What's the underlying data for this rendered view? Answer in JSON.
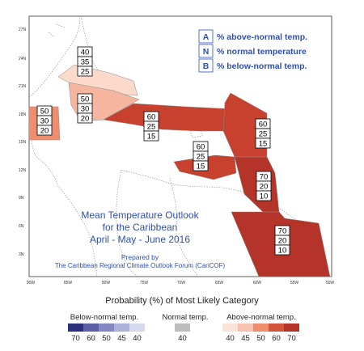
{
  "map": {
    "lat_labels": [
      "27N",
      "24N",
      "21N",
      "18N",
      "15N",
      "12N",
      "9N",
      "6N",
      "3N"
    ],
    "lon_labels": [
      "90W",
      "85W",
      "80W",
      "75W",
      "70W",
      "65W",
      "60W",
      "55W",
      "50W"
    ],
    "legend_box": [
      {
        "letter": "A",
        "text": "% above-normal temp."
      },
      {
        "letter": "N",
        "text": "% normal temperature"
      },
      {
        "letter": "B",
        "text": "% below-normal temp."
      }
    ],
    "regions": [
      {
        "name": "bahamas",
        "values": [
          "40",
          "35",
          "25"
        ],
        "color": "#fbd9cb"
      },
      {
        "name": "cuba",
        "values": [
          "50",
          "30",
          "20"
        ],
        "color": "#f5b59e"
      },
      {
        "name": "belize",
        "values": [
          "50",
          "30",
          "20"
        ],
        "color": "#ee8e6f"
      },
      {
        "name": "hispaniola-jamaica",
        "values": [
          "60",
          "25",
          "15"
        ],
        "color": "#c8412f"
      },
      {
        "name": "leeward-islands",
        "values": [
          "60",
          "25",
          "15"
        ],
        "color": "#c8412f"
      },
      {
        "name": "windward-islands",
        "values": [
          "60",
          "25",
          "15"
        ],
        "color": "#c8412f"
      },
      {
        "name": "trinidad",
        "values": [
          "70",
          "20",
          "10"
        ],
        "color": "#b5342a"
      },
      {
        "name": "guianas",
        "values": [
          "70",
          "20",
          "10"
        ],
        "color": "#b5342a"
      }
    ],
    "title_lines": [
      "Mean Temperature Outlook",
      "for the Caribbean",
      "April - May - June 2016"
    ],
    "prepared_lines": [
      "Prepared by",
      "The Caribbean Regional Climate Outlook Forum (CariCOF)"
    ],
    "title_color": "#2f4fb0"
  },
  "legend": {
    "title": "Probability (%) of Most Likely Category",
    "below": {
      "label": "Below-normal temp.",
      "ticks": [
        "70",
        "60",
        "50",
        "45",
        "40"
      ],
      "colors": [
        "#2b2f7e",
        "#5a5fa6",
        "#8387c2",
        "#aeb2da",
        "#d6d9ee"
      ]
    },
    "normal": {
      "label": "Normal temp.",
      "ticks": [
        "40"
      ],
      "colors": [
        "#bdbdbd"
      ]
    },
    "above": {
      "label": "Above-normal temp.",
      "ticks": [
        "40",
        "45",
        "50",
        "60",
        "70"
      ],
      "colors": [
        "#fbe3d8",
        "#f7c3ae",
        "#ee8e6f",
        "#d2543c",
        "#b5342a"
      ]
    }
  }
}
